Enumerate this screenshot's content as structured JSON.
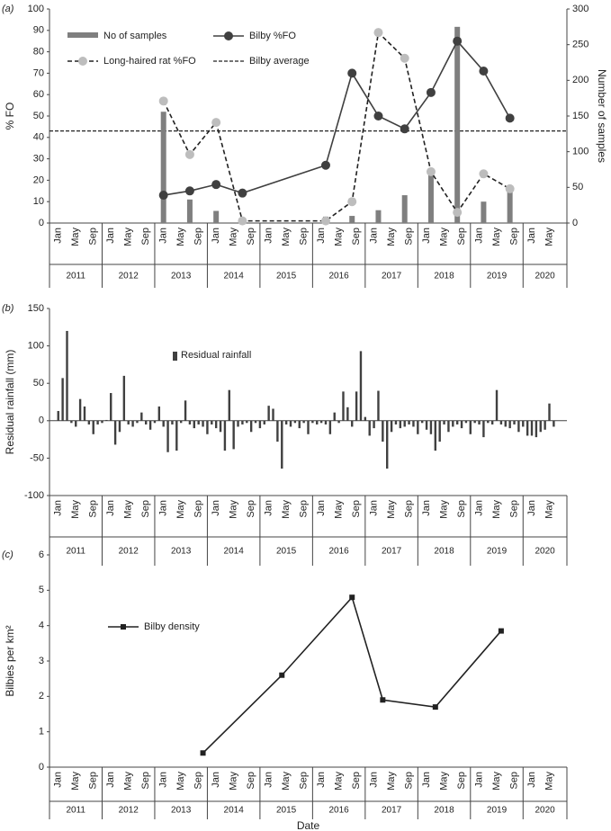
{
  "chart_data": [
    {
      "type": "combo",
      "panel_label": "(a)",
      "ylabel": "% FO",
      "y2label": "Number of samples",
      "ylim": [
        0,
        100
      ],
      "yticks": [
        0,
        10,
        20,
        30,
        40,
        50,
        60,
        70,
        80,
        90,
        100
      ],
      "y2lim": [
        0,
        300
      ],
      "y2ticks": [
        0,
        50,
        100,
        150,
        200,
        250,
        300
      ],
      "xlim": [
        "2010-11",
        "2020-09"
      ],
      "xticks": [
        {
          "value": "2011-01",
          "label": "Jan"
        },
        {
          "value": "2011-05",
          "label": "May"
        },
        {
          "value": "2011-09",
          "label": "Sep"
        },
        {
          "value": "2012-01",
          "label": "Jan"
        },
        {
          "value": "2012-05",
          "label": "May"
        },
        {
          "value": "2012-09",
          "label": "Sep"
        },
        {
          "value": "2013-01",
          "label": "Jan"
        },
        {
          "value": "2013-05",
          "label": "May"
        },
        {
          "value": "2013-09",
          "label": "Sep"
        },
        {
          "value": "2014-01",
          "label": "Jan"
        },
        {
          "value": "2014-05",
          "label": "May"
        },
        {
          "value": "2014-09",
          "label": "Sep"
        },
        {
          "value": "2015-01",
          "label": "Jan"
        },
        {
          "value": "2015-05",
          "label": "May"
        },
        {
          "value": "2015-09",
          "label": "Sep"
        },
        {
          "value": "2016-01",
          "label": "Jan"
        },
        {
          "value": "2016-05",
          "label": "May"
        },
        {
          "value": "2016-09",
          "label": "Sep"
        },
        {
          "value": "2017-01",
          "label": "Jan"
        },
        {
          "value": "2017-05",
          "label": "May"
        },
        {
          "value": "2017-09",
          "label": "Sep"
        },
        {
          "value": "2018-01",
          "label": "Jan"
        },
        {
          "value": "2018-05",
          "label": "May"
        },
        {
          "value": "2018-09",
          "label": "Sep"
        },
        {
          "value": "2019-01",
          "label": "Jan"
        },
        {
          "value": "2019-05",
          "label": "May"
        },
        {
          "value": "2019-09",
          "label": "Sep"
        },
        {
          "value": "2020-01",
          "label": "Jan"
        },
        {
          "value": "2020-05",
          "label": "May"
        }
      ],
      "year_labels": [
        "2011",
        "2012",
        "2013",
        "2014",
        "2015",
        "2016",
        "2017",
        "2018",
        "2019",
        "2020"
      ],
      "series": [
        {
          "name": "No of samples",
          "type": "bar",
          "axis": "y2",
          "color": "#7f7f7f",
          "x": [
            "2013-01",
            "2013-07",
            "2014-01",
            "2016-02",
            "2016-08",
            "2017-02",
            "2017-08",
            "2018-02",
            "2018-08",
            "2019-02",
            "2019-08"
          ],
          "values": [
            156,
            33,
            17,
            9,
            10,
            18,
            39,
            75,
            275,
            30,
            45
          ]
        },
        {
          "name": "Bilby %FO",
          "type": "line",
          "color": "#404040",
          "marker_color": "#404040",
          "x": [
            "2013-01",
            "2013-07",
            "2014-01",
            "2014-07",
            "2016-02",
            "2016-08",
            "2017-02",
            "2017-08",
            "2018-02",
            "2018-08",
            "2019-02",
            "2019-08"
          ],
          "values": [
            13,
            15,
            18,
            14,
            27,
            70,
            50,
            44,
            61,
            85,
            71,
            49
          ]
        },
        {
          "name": "Long-haired rat %FO",
          "type": "line",
          "color": "#222222",
          "marker_color": "#bdbdbd",
          "dashed": true,
          "x": [
            "2013-01",
            "2013-07",
            "2014-01",
            "2014-07",
            "2016-02",
            "2016-08",
            "2017-02",
            "2017-08",
            "2018-02",
            "2018-08",
            "2019-02",
            "2019-08"
          ],
          "values": [
            57,
            32,
            47,
            1,
            1,
            10,
            89,
            77,
            24,
            5,
            23,
            16
          ]
        }
      ],
      "reference_lines": [
        {
          "name": "Bilby average",
          "value": 43,
          "color": "#222222",
          "dashed": true
        }
      ]
    },
    {
      "type": "bar",
      "panel_label": "(b)",
      "ylabel": "Residual rainfall (mm)",
      "ylim": [
        -100,
        150
      ],
      "yticks": [
        -100,
        -50,
        0,
        50,
        100,
        150
      ],
      "xlim": [
        "2010-11",
        "2020-09"
      ],
      "xticks": [
        {
          "value": "2011-01",
          "label": "Jan"
        },
        {
          "value": "2011-05",
          "label": "May"
        },
        {
          "value": "2011-09",
          "label": "Sep"
        },
        {
          "value": "2012-01",
          "label": "Jan"
        },
        {
          "value": "2012-05",
          "label": "May"
        },
        {
          "value": "2012-09",
          "label": "Sep"
        },
        {
          "value": "2013-01",
          "label": "Jan"
        },
        {
          "value": "2013-05",
          "label": "May"
        },
        {
          "value": "2013-09",
          "label": "Sep"
        },
        {
          "value": "2014-01",
          "label": "Jan"
        },
        {
          "value": "2014-05",
          "label": "May"
        },
        {
          "value": "2014-09",
          "label": "Sep"
        },
        {
          "value": "2015-01",
          "label": "Jan"
        },
        {
          "value": "2015-05",
          "label": "May"
        },
        {
          "value": "2015-09",
          "label": "Sep"
        },
        {
          "value": "2016-01",
          "label": "Jan"
        },
        {
          "value": "2016-05",
          "label": "May"
        },
        {
          "value": "2016-09",
          "label": "Sep"
        },
        {
          "value": "2017-01",
          "label": "Jan"
        },
        {
          "value": "2017-05",
          "label": "May"
        },
        {
          "value": "2017-09",
          "label": "Sep"
        },
        {
          "value": "2018-01",
          "label": "Jan"
        },
        {
          "value": "2018-05",
          "label": "May"
        },
        {
          "value": "2018-09",
          "label": "Sep"
        },
        {
          "value": "2019-01",
          "label": "Jan"
        },
        {
          "value": "2019-05",
          "label": "May"
        },
        {
          "value": "2019-09",
          "label": "Sep"
        },
        {
          "value": "2020-01",
          "label": "Jan"
        },
        {
          "value": "2020-05",
          "label": "May"
        }
      ],
      "year_labels": [
        "2011",
        "2012",
        "2013",
        "2014",
        "2015",
        "2016",
        "2017",
        "2018",
        "2019",
        "2020"
      ],
      "series": [
        {
          "name": "Residual rainfall",
          "type": "bar",
          "color": "#404040",
          "x": [
            "2011-01",
            "2011-02",
            "2011-03",
            "2011-04",
            "2011-05",
            "2011-06",
            "2011-07",
            "2011-08",
            "2011-09",
            "2011-10",
            "2011-11",
            "2011-12",
            "2012-01",
            "2012-02",
            "2012-03",
            "2012-04",
            "2012-05",
            "2012-06",
            "2012-07",
            "2012-08",
            "2012-09",
            "2012-10",
            "2012-11",
            "2012-12",
            "2013-01",
            "2013-02",
            "2013-03",
            "2013-04",
            "2013-05",
            "2013-06",
            "2013-07",
            "2013-08",
            "2013-09",
            "2013-10",
            "2013-11",
            "2013-12",
            "2014-01",
            "2014-02",
            "2014-03",
            "2014-04",
            "2014-05",
            "2014-06",
            "2014-07",
            "2014-08",
            "2014-09",
            "2014-10",
            "2014-11",
            "2014-12",
            "2015-01",
            "2015-02",
            "2015-03",
            "2015-04",
            "2015-05",
            "2015-06",
            "2015-07",
            "2015-08",
            "2015-09",
            "2015-10",
            "2015-11",
            "2015-12",
            "2016-01",
            "2016-02",
            "2016-03",
            "2016-04",
            "2016-05",
            "2016-06",
            "2016-07",
            "2016-08",
            "2016-09",
            "2016-10",
            "2016-11",
            "2016-12",
            "2017-01",
            "2017-02",
            "2017-03",
            "2017-04",
            "2017-05",
            "2017-06",
            "2017-07",
            "2017-08",
            "2017-09",
            "2017-10",
            "2017-11",
            "2017-12",
            "2018-01",
            "2018-02",
            "2018-03",
            "2018-04",
            "2018-05",
            "2018-06",
            "2018-07",
            "2018-08",
            "2018-09",
            "2018-10",
            "2018-11",
            "2018-12",
            "2019-01",
            "2019-02",
            "2019-03",
            "2019-04",
            "2019-05",
            "2019-06",
            "2019-07",
            "2019-08",
            "2019-09",
            "2019-10",
            "2019-11",
            "2019-12",
            "2020-01",
            "2020-02",
            "2020-03",
            "2020-04",
            "2020-05",
            "2020-06"
          ],
          "values": [
            13,
            57,
            120,
            -3,
            -8,
            29,
            19,
            -5,
            -18,
            -5,
            -3,
            1,
            37,
            -32,
            -15,
            60,
            -5,
            -8,
            -3,
            11,
            -5,
            -12,
            -3,
            19,
            -8,
            -42,
            -5,
            -40,
            -3,
            27,
            -5,
            -10,
            -5,
            -8,
            -18,
            -5,
            -10,
            -15,
            -40,
            41,
            -38,
            -8,
            -5,
            -3,
            -15,
            -3,
            -10,
            -5,
            20,
            16,
            -28,
            -64,
            -5,
            -8,
            -3,
            -10,
            -3,
            -18,
            -3,
            -5,
            -3,
            -5,
            -18,
            11,
            -3,
            39,
            18,
            -8,
            39,
            93,
            5,
            -20,
            -10,
            40,
            -28,
            -64,
            -15,
            -5,
            -10,
            -8,
            -5,
            -8,
            -18,
            -3,
            -12,
            -18,
            -40,
            -28,
            -5,
            -15,
            -8,
            -5,
            -10,
            -3,
            -18,
            -3,
            -5,
            -22,
            -3,
            -5,
            41,
            -5,
            -8,
            -10,
            -5,
            -15,
            -8,
            -20,
            -20,
            -22,
            -15,
            -12,
            23,
            -8
          ]
        }
      ]
    },
    {
      "type": "line",
      "panel_label": "(c)",
      "ylabel": "Bilbies per km²",
      "xlabel": "Date",
      "ylim": [
        0,
        6
      ],
      "yticks": [
        0,
        1,
        2,
        3,
        4,
        5,
        6
      ],
      "xlim": [
        "2010-11",
        "2020-09"
      ],
      "xticks": [
        {
          "value": "2011-01",
          "label": "Jan"
        },
        {
          "value": "2011-05",
          "label": "May"
        },
        {
          "value": "2011-09",
          "label": "Sep"
        },
        {
          "value": "2012-01",
          "label": "Jan"
        },
        {
          "value": "2012-05",
          "label": "May"
        },
        {
          "value": "2012-09",
          "label": "Sep"
        },
        {
          "value": "2013-01",
          "label": "Jan"
        },
        {
          "value": "2013-05",
          "label": "May"
        },
        {
          "value": "2013-09",
          "label": "Sep"
        },
        {
          "value": "2014-01",
          "label": "Jan"
        },
        {
          "value": "2014-05",
          "label": "May"
        },
        {
          "value": "2014-09",
          "label": "Sep"
        },
        {
          "value": "2015-01",
          "label": "Jan"
        },
        {
          "value": "2015-05",
          "label": "May"
        },
        {
          "value": "2015-09",
          "label": "Sep"
        },
        {
          "value": "2016-01",
          "label": "Jan"
        },
        {
          "value": "2016-05",
          "label": "May"
        },
        {
          "value": "2016-09",
          "label": "Sep"
        },
        {
          "value": "2017-01",
          "label": "Jan"
        },
        {
          "value": "2017-05",
          "label": "May"
        },
        {
          "value": "2017-09",
          "label": "Sep"
        },
        {
          "value": "2018-01",
          "label": "Jan"
        },
        {
          "value": "2018-05",
          "label": "May"
        },
        {
          "value": "2018-09",
          "label": "Sep"
        },
        {
          "value": "2019-01",
          "label": "Jan"
        },
        {
          "value": "2019-05",
          "label": "May"
        },
        {
          "value": "2019-09",
          "label": "Sep"
        },
        {
          "value": "2020-01",
          "label": "Jan"
        },
        {
          "value": "2020-05",
          "label": "May"
        }
      ],
      "year_labels": [
        "2011",
        "2012",
        "2013",
        "2014",
        "2015",
        "2016",
        "2017",
        "2018",
        "2019",
        "2020"
      ],
      "series": [
        {
          "name": "Bilby density",
          "type": "line",
          "color": "#222222",
          "marker": "square",
          "marker_color": "#222222",
          "x": [
            "2013-10",
            "2015-04",
            "2016-08",
            "2017-03",
            "2018-03",
            "2019-06"
          ],
          "values": [
            0.4,
            2.6,
            4.8,
            1.9,
            1.7,
            3.85
          ]
        }
      ]
    }
  ]
}
